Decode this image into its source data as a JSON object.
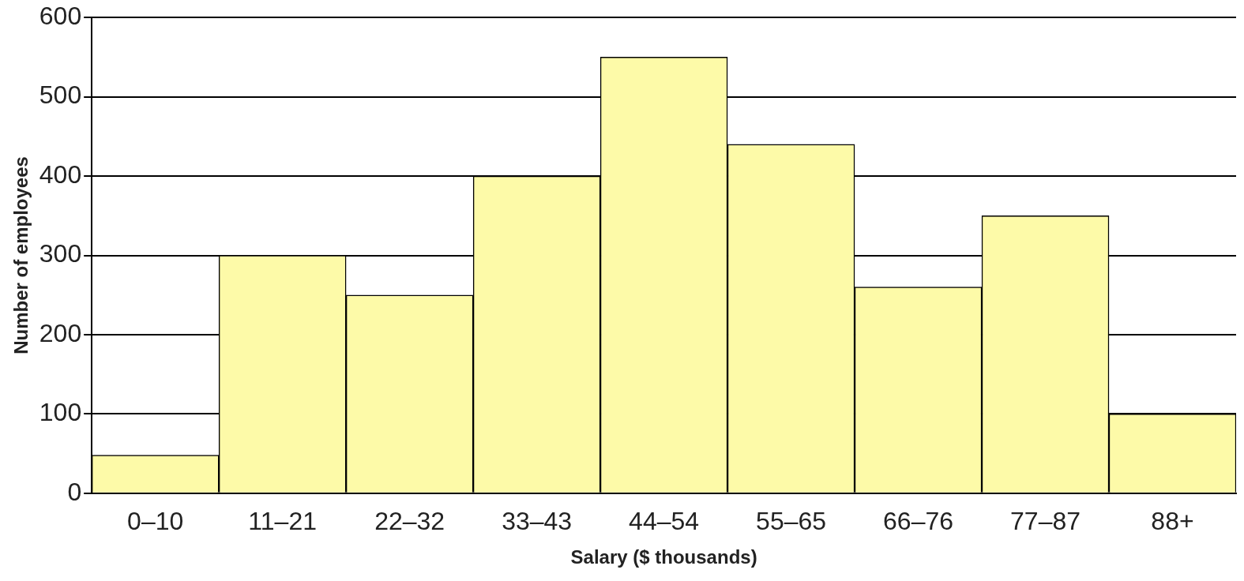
{
  "chart_data": {
    "type": "bar",
    "xlabel": "Salary ($ thousands)",
    "ylabel": "Number of employees",
    "categories": [
      "0–10",
      "11–21",
      "22–32",
      "33–43",
      "44–54",
      "55–65",
      "66–76",
      "77–87",
      "88+"
    ],
    "values": [
      48,
      300,
      250,
      400,
      550,
      440,
      260,
      350,
      100
    ],
    "color": "#fdfaa8",
    "ylim": [
      0,
      600
    ],
    "yticks": [
      0,
      100,
      200,
      300,
      400,
      500,
      600
    ],
    "grid": "y",
    "legend": false
  }
}
